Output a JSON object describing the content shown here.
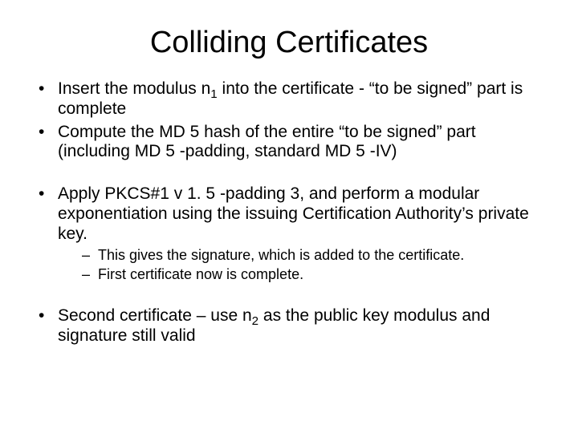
{
  "title": "Colliding Certificates",
  "bullets": {
    "b1_pre": "Insert the modulus n",
    "b1_sub": "1",
    "b1_post": " into the certificate - “to be signed” part is complete",
    "b2": "Compute the MD 5 hash of the entire “to be signed” part (including MD 5 -padding, standard MD 5 -IV)",
    "b3": "Apply PKCS#1 v 1. 5 -padding 3, and perform a modular exponentiation using the issuing Certification Authority’s private key.",
    "b3_sub1": "This gives the signature, which is added to the certificate.",
    "b3_sub2": "First certificate now is complete.",
    "b4_pre": "Second certificate – use n",
    "b4_sub": "2",
    "b4_post": " as the public key modulus and signature still valid"
  },
  "style": {
    "background": "#ffffff",
    "text_color": "#000000",
    "title_fontsize": 38,
    "body_fontsize": 21,
    "sub_fontsize": 18
  }
}
